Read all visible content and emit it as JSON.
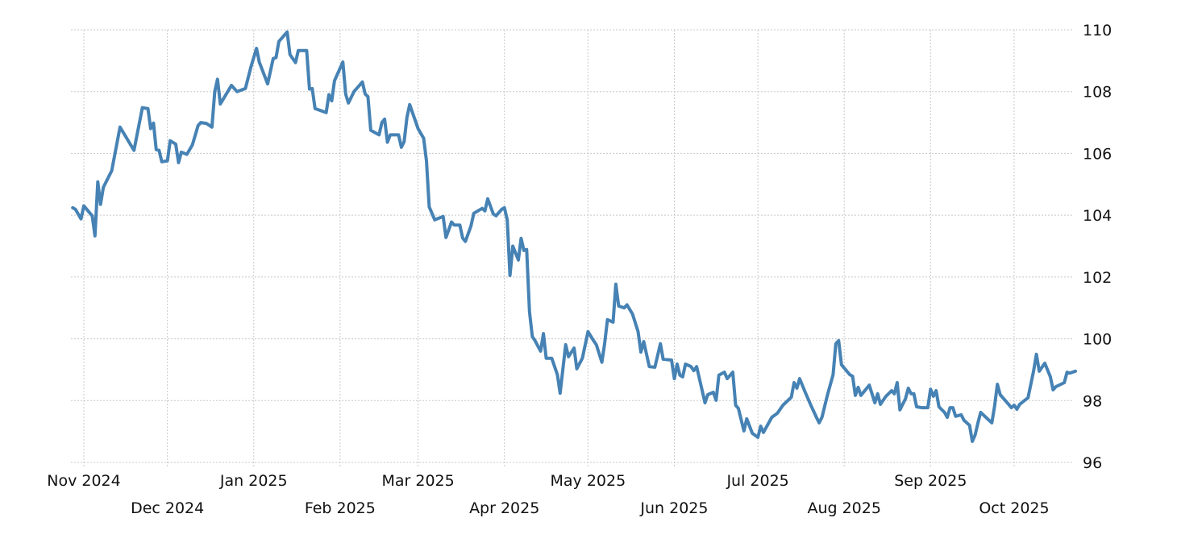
{
  "chart_data": {
    "type": "line",
    "title": "",
    "xlabel": "",
    "ylabel": "",
    "ylim": [
      96,
      110
    ],
    "yticks": [
      "96",
      "98",
      "100",
      "102",
      "104",
      "106",
      "108",
      "110"
    ],
    "y_axis_position": "right",
    "grid": true,
    "line_color": "#4682b4",
    "xticks": [
      {
        "label": "Nov 2024",
        "date": "2024-11-01"
      },
      {
        "label": "Dec 2024",
        "date": "2024-12-01"
      },
      {
        "label": "Jan 2025",
        "date": "2025-01-01"
      },
      {
        "label": "Feb 2025",
        "date": "2025-02-01"
      },
      {
        "label": "Mar 2025",
        "date": "2025-03-01"
      },
      {
        "label": "Apr 2025",
        "date": "2025-04-01"
      },
      {
        "label": "May 2025",
        "date": "2025-05-01"
      },
      {
        "label": "Jun 2025",
        "date": "2025-06-01"
      },
      {
        "label": "Jul 2025",
        "date": "2025-07-01"
      },
      {
        "label": "Aug 2025",
        "date": "2025-08-01"
      },
      {
        "label": "Sep 2025",
        "date": "2025-09-01"
      },
      {
        "label": "Oct 2025",
        "date": "2025-10-01"
      }
    ],
    "series": [
      {
        "x": [
          "2024-10-28",
          "2024-10-29",
          "2024-10-31",
          "2024-11-01",
          "2024-11-04",
          "2024-11-05",
          "2024-11-06",
          "2024-11-07",
          "2024-11-08",
          "2024-11-11",
          "2024-11-14",
          "2024-11-19",
          "2024-11-22",
          "2024-11-24",
          "2024-11-25",
          "2024-11-26",
          "2024-11-27",
          "2024-11-28",
          "2024-11-29",
          "2024-12-01",
          "2024-12-02",
          "2024-12-04",
          "2024-12-05",
          "2024-12-06",
          "2024-12-08",
          "2024-12-10",
          "2024-12-12",
          "2024-12-13",
          "2024-12-15",
          "2024-12-17",
          "2024-12-18",
          "2024-12-19",
          "2024-12-20",
          "2024-12-24",
          "2024-12-26",
          "2024-12-29",
          "2024-12-31",
          "2025-01-02",
          "2025-01-03",
          "2025-01-06",
          "2025-01-08",
          "2025-01-09",
          "2025-01-10",
          "2025-01-13",
          "2025-01-14",
          "2025-01-16",
          "2025-01-17",
          "2025-01-20",
          "2025-01-21",
          "2025-01-22",
          "2025-01-23",
          "2025-01-27",
          "2025-01-28",
          "2025-01-29",
          "2025-01-30",
          "2025-02-02",
          "2025-02-03",
          "2025-02-04",
          "2025-02-06",
          "2025-02-09",
          "2025-02-10",
          "2025-02-11",
          "2025-02-12",
          "2025-02-15",
          "2025-02-16",
          "2025-02-17",
          "2025-02-18",
          "2025-02-19",
          "2025-02-22",
          "2025-02-23",
          "2025-02-24",
          "2025-02-25",
          "2025-02-26",
          "2025-03-01",
          "2025-03-03",
          "2025-03-04",
          "2025-03-05",
          "2025-03-07",
          "2025-03-10",
          "2025-03-11",
          "2025-03-13",
          "2025-03-14",
          "2025-03-16",
          "2025-03-17",
          "2025-03-18",
          "2025-03-20",
          "2025-03-21",
          "2025-03-24",
          "2025-03-25",
          "2025-03-26",
          "2025-03-28",
          "2025-03-29",
          "2025-03-31",
          "2025-04-01",
          "2025-04-02",
          "2025-04-03",
          "2025-04-04",
          "2025-04-06",
          "2025-04-07",
          "2025-04-08",
          "2025-04-09",
          "2025-04-10",
          "2025-04-11",
          "2025-04-12",
          "2025-04-14",
          "2025-04-15",
          "2025-04-16",
          "2025-04-18",
          "2025-04-20",
          "2025-04-21",
          "2025-04-23",
          "2025-04-24",
          "2025-04-26",
          "2025-04-27",
          "2025-04-29",
          "2025-05-01",
          "2025-05-03",
          "2025-05-04",
          "2025-05-06",
          "2025-05-07",
          "2025-05-08",
          "2025-05-10",
          "2025-05-11",
          "2025-05-12",
          "2025-05-14",
          "2025-05-15",
          "2025-05-17",
          "2025-05-19",
          "2025-05-20",
          "2025-05-21",
          "2025-05-23",
          "2025-05-25",
          "2025-05-27",
          "2025-05-28",
          "2025-05-31",
          "2025-06-01",
          "2025-06-02",
          "2025-06-03",
          "2025-06-04",
          "2025-06-05",
          "2025-06-07",
          "2025-06-08",
          "2025-06-09",
          "2025-06-10",
          "2025-06-12",
          "2025-06-13",
          "2025-06-15",
          "2025-06-16",
          "2025-06-17",
          "2025-06-19",
          "2025-06-20",
          "2025-06-22",
          "2025-06-23",
          "2025-06-24",
          "2025-06-26",
          "2025-06-27",
          "2025-06-29",
          "2025-07-01",
          "2025-07-02",
          "2025-07-03",
          "2025-07-06",
          "2025-07-08",
          "2025-07-10",
          "2025-07-13",
          "2025-07-14",
          "2025-07-15",
          "2025-07-16",
          "2025-07-18",
          "2025-07-20",
          "2025-07-22",
          "2025-07-23",
          "2025-07-24",
          "2025-07-26",
          "2025-07-28",
          "2025-07-29",
          "2025-07-30",
          "2025-07-31",
          "2025-08-03",
          "2025-08-04",
          "2025-08-05",
          "2025-08-06",
          "2025-08-07",
          "2025-08-10",
          "2025-08-12",
          "2025-08-13",
          "2025-08-14",
          "2025-08-16",
          "2025-08-18",
          "2025-08-19",
          "2025-08-20",
          "2025-08-21",
          "2025-08-23",
          "2025-08-24",
          "2025-08-25",
          "2025-08-26",
          "2025-08-27",
          "2025-08-29",
          "2025-08-31",
          "2025-09-01",
          "2025-09-02",
          "2025-09-03",
          "2025-09-04",
          "2025-09-06",
          "2025-09-07",
          "2025-09-08",
          "2025-09-09",
          "2025-09-10",
          "2025-09-12",
          "2025-09-13",
          "2025-09-15",
          "2025-09-16",
          "2025-09-17",
          "2025-09-18",
          "2025-09-19",
          "2025-09-22",
          "2025-09-23",
          "2025-09-24",
          "2025-09-25",
          "2025-09-26",
          "2025-09-29",
          "2025-09-30",
          "2025-10-01",
          "2025-10-02",
          "2025-10-03",
          "2025-10-06",
          "2025-10-08",
          "2025-10-09",
          "2025-10-10",
          "2025-10-12",
          "2025-10-14",
          "2025-10-15",
          "2025-10-16",
          "2025-10-19",
          "2025-10-20",
          "2025-10-21",
          "2025-10-23"
        ],
        "y": [
          104.24,
          104.19,
          103.88,
          104.3,
          103.98,
          103.33,
          105.08,
          104.35,
          104.9,
          105.44,
          106.85,
          106.1,
          107.48,
          107.45,
          106.8,
          106.98,
          106.12,
          106.1,
          105.73,
          105.76,
          106.41,
          106.3,
          105.7,
          106.04,
          105.97,
          106.28,
          106.9,
          107.0,
          106.97,
          106.85,
          108.0,
          108.4,
          107.6,
          108.2,
          108.0,
          108.1,
          108.8,
          109.4,
          108.95,
          108.25,
          109.07,
          109.1,
          109.62,
          109.93,
          109.2,
          108.94,
          109.33,
          109.33,
          108.08,
          108.1,
          107.45,
          107.32,
          107.9,
          107.7,
          108.35,
          108.96,
          107.92,
          107.63,
          108.0,
          108.31,
          107.92,
          107.84,
          106.75,
          106.6,
          107.0,
          107.11,
          106.36,
          106.6,
          106.6,
          106.2,
          106.38,
          107.17,
          107.58,
          106.8,
          106.49,
          105.76,
          104.27,
          103.85,
          103.96,
          103.28,
          103.78,
          103.68,
          103.68,
          103.26,
          103.15,
          103.65,
          104.06,
          104.22,
          104.14,
          104.53,
          104.04,
          103.98,
          104.19,
          104.24,
          103.85,
          102.05,
          103.0,
          102.55,
          103.25,
          102.86,
          102.89,
          100.88,
          100.07,
          99.94,
          99.6,
          100.17,
          99.37,
          99.37,
          98.84,
          98.24,
          99.81,
          99.42,
          99.7,
          99.03,
          99.37,
          100.23,
          99.94,
          99.81,
          99.24,
          99.86,
          100.62,
          100.54,
          101.77,
          101.06,
          101.0,
          101.1,
          100.8,
          100.23,
          99.57,
          99.91,
          99.1,
          99.08,
          99.84,
          99.34,
          99.31,
          98.71,
          99.18,
          98.82,
          98.77,
          99.18,
          99.1,
          98.97,
          99.1,
          98.71,
          97.93,
          98.19,
          98.27,
          98.01,
          98.82,
          98.92,
          98.71,
          98.92,
          97.85,
          97.75,
          97.02,
          97.41,
          96.94,
          96.81,
          97.17,
          96.97,
          97.46,
          97.59,
          97.85,
          98.11,
          98.58,
          98.4,
          98.71,
          98.27,
          97.85,
          97.46,
          97.28,
          97.46,
          98.19,
          98.84,
          99.84,
          99.94,
          99.16,
          98.84,
          98.79,
          98.17,
          98.43,
          98.17,
          98.5,
          97.93,
          98.22,
          97.88,
          98.14,
          98.32,
          98.22,
          98.58,
          97.7,
          98.06,
          98.4,
          98.22,
          98.22,
          97.8,
          97.77,
          97.77,
          98.37,
          98.14,
          98.32,
          97.8,
          97.62,
          97.46,
          97.77,
          97.77,
          97.49,
          97.54,
          97.36,
          97.2,
          96.68,
          96.89,
          97.28,
          97.62,
          97.36,
          97.28,
          97.83,
          98.53,
          98.19,
          97.88,
          97.77,
          97.85,
          97.72,
          97.88,
          98.09,
          98.97,
          99.5,
          98.95,
          99.21,
          98.77,
          98.35,
          98.45,
          98.58,
          98.92,
          98.89,
          98.95
        ]
      }
    ]
  }
}
